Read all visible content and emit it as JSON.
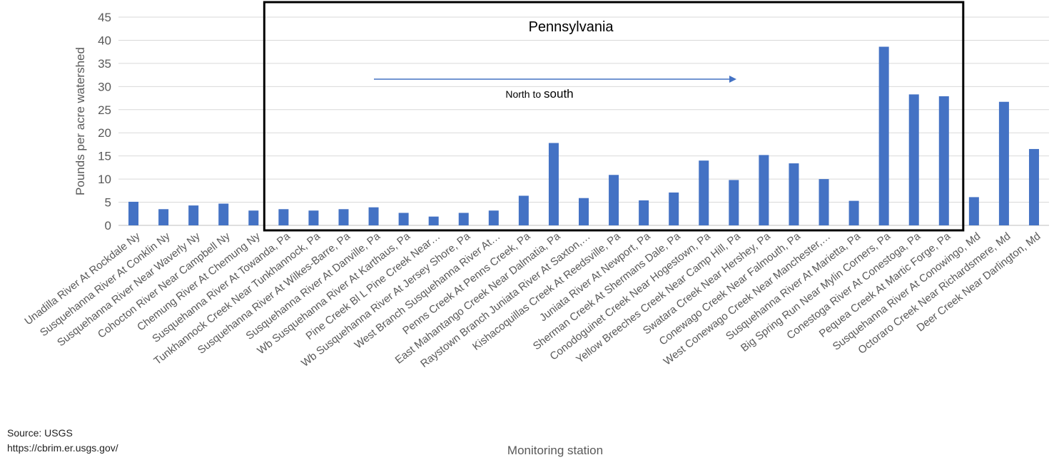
{
  "chart_data": {
    "type": "bar",
    "title": "",
    "xlabel": "Monitoring station",
    "ylabel": "Pounds per acre watershed",
    "ylim": [
      0,
      45
    ],
    "yticks": [
      0,
      5,
      10,
      15,
      20,
      25,
      30,
      35,
      40,
      45
    ],
    "grid": true,
    "bar_color": "#4472c4",
    "categories": [
      "Unadilla River At Rockdale Ny",
      "Susquehanna River At Conklin Ny",
      "Susquehanna River Near Waverly Ny",
      "Cohocton River Near Campbell Ny",
      "Chemung River At Chemung Ny",
      "Susquehanna River At Towanda, Pa",
      "Tunkhannock Creek Near Tunkhannock, Pa",
      "Susquehanna River At Wilkes-Barre, Pa",
      "Susquehanna River At Danville, Pa",
      "Wb Susquehanna River At Karthaus, Pa",
      "Pine Creek Bl L Pine Creek Near…",
      "Wb Susquehanna River At Jersey Shore, Pa",
      "West Branch Susquehanna River At…",
      "Penns Creek At Penns Creek, Pa",
      "East Mahantango Creek Near Dalmatia, Pa",
      "Raystown Branch Juniata River At Saxton,…",
      "Kishacoquillas Creek At Reedsville, Pa",
      "Juniata River At Newport, Pa",
      "Sherman Creek At Shermans Dale, Pa",
      "Conodoguinet Creek Near Hogestown, Pa",
      "Yellow Breeches Creek Near Camp Hill, Pa",
      "Swatara Creek Near Hershey, Pa",
      "Conewago Creek Near Falmouth, Pa",
      "West Conewago Creek Near Manchester,…",
      "Susquehanna River At Marietta, Pa",
      "Big Spring Run Near Mylin Corners, Pa",
      "Conestoga River At Conestoga, Pa",
      "Pequea Creek At Martic Forge, Pa",
      "Susquehanna River At Conowingo, Md",
      "Octoraro Creek Near Richardsmere, Md",
      "Deer Creek Near Darlington, Md"
    ],
    "values": [
      5.1,
      3.5,
      4.3,
      4.7,
      3.2,
      3.5,
      3.2,
      3.5,
      3.9,
      2.7,
      1.9,
      2.7,
      3.2,
      6.4,
      17.8,
      5.9,
      10.9,
      5.4,
      7.1,
      14.0,
      9.8,
      15.2,
      13.4,
      10.0,
      5.3,
      38.6,
      28.3,
      27.9,
      6.1,
      26.7,
      16.5
    ],
    "annotations": {
      "box_label": "Pennsylvania",
      "box_from_category": 5,
      "box_to_category": 27,
      "arrow_label_a": "North to ",
      "arrow_label_b": "south"
    }
  },
  "source": {
    "line1": "Source: USGS",
    "line2": "https://cbrim.er.usgs.gov/"
  }
}
